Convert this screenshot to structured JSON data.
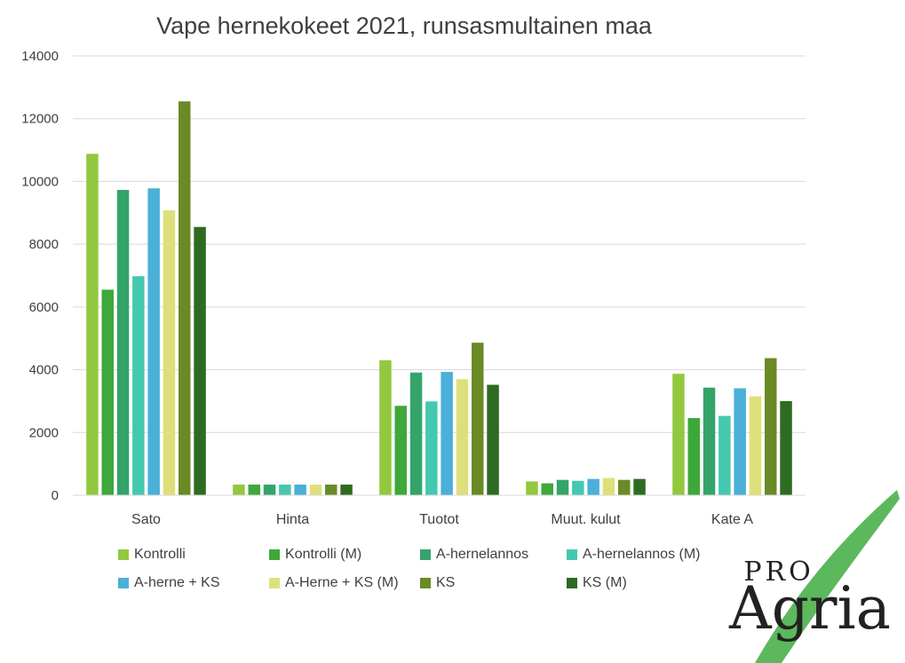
{
  "chart_data": {
    "type": "bar",
    "title": "Vape hernekokeet 2021, runsasmultainen maa",
    "xlabel": "",
    "ylabel": "",
    "ylim": [
      0,
      14000
    ],
    "yticks": [
      0,
      2000,
      4000,
      6000,
      8000,
      10000,
      12000,
      14000
    ],
    "grid": true,
    "legend_position": "bottom",
    "categories": [
      "Sato",
      "Hinta",
      "Tuotot",
      "Muut. kulut",
      "Kate A"
    ],
    "series": [
      {
        "name": "Kontrolli",
        "color": "#92c83e",
        "values": [
          10880,
          340,
          4300,
          440,
          3870
        ]
      },
      {
        "name": "Kontrolli (M)",
        "color": "#3ea83a",
        "values": [
          6550,
          340,
          2850,
          380,
          2460
        ]
      },
      {
        "name": "A-hernelannos",
        "color": "#34a46a",
        "values": [
          9730,
          340,
          3910,
          490,
          3430
        ]
      },
      {
        "name": "A-hernelannos (M)",
        "color": "#45c8b0",
        "values": [
          6980,
          340,
          2990,
          460,
          2530
        ]
      },
      {
        "name": "A-herne + KS",
        "color": "#4ab0d8",
        "values": [
          9780,
          340,
          3930,
          520,
          3410
        ]
      },
      {
        "name": "A-Herne + KS (M)",
        "color": "#dde07a",
        "values": [
          9080,
          340,
          3700,
          550,
          3150
        ]
      },
      {
        "name": "KS",
        "color": "#6a8a26",
        "values": [
          12550,
          340,
          4860,
          490,
          4370
        ]
      },
      {
        "name": "KS (M)",
        "color": "#2e6b22",
        "values": [
          8550,
          340,
          3520,
          520,
          3000
        ]
      }
    ]
  },
  "logo": {
    "text_top": "PRO",
    "text_main": "Agria",
    "swoosh_color": "#5cb85c"
  }
}
